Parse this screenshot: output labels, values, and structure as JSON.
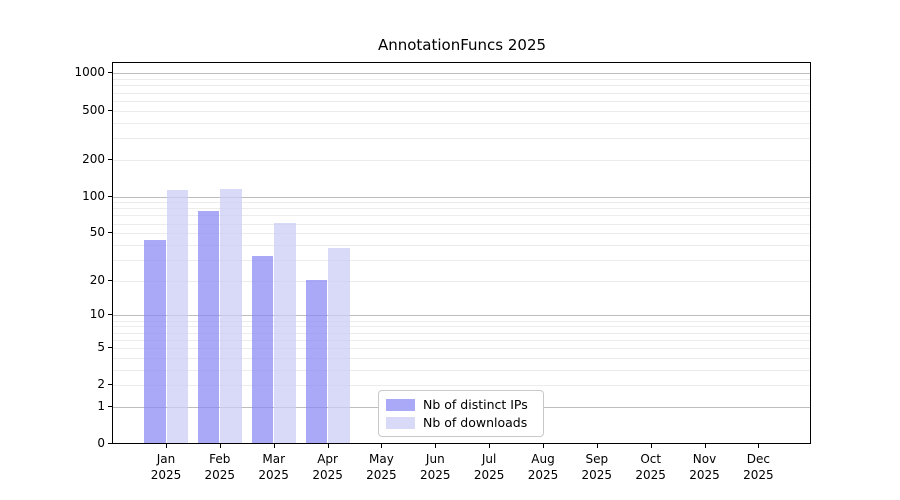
{
  "chart_data": {
    "type": "bar",
    "title": "AnnotationFuncs 2025",
    "year_label": "2025",
    "categories": [
      "Jan",
      "Feb",
      "Mar",
      "Apr",
      "May",
      "Jun",
      "Jul",
      "Aug",
      "Sep",
      "Oct",
      "Nov",
      "Dec"
    ],
    "series": [
      {
        "name": "Nb of distinct IPs",
        "color": "rgba(136,136,245,0.72)",
        "values": [
          43,
          75,
          32,
          20,
          0,
          0,
          0,
          0,
          0,
          0,
          0,
          0
        ]
      },
      {
        "name": "Nb of downloads",
        "color": "rgba(204,204,245,0.75)",
        "values": [
          110,
          112,
          60,
          37,
          0,
          0,
          0,
          0,
          0,
          0,
          0,
          0
        ]
      }
    ],
    "xlabel": "",
    "ylabel": "",
    "yscale": "log1p",
    "ylim": [
      0,
      1200
    ],
    "ytick_values": [
      0,
      1,
      2,
      5,
      10,
      20,
      50,
      100,
      200,
      500,
      1000
    ],
    "grid_major_values": [
      1,
      10,
      100,
      1000
    ],
    "grid_minor_values": [
      2,
      3,
      4,
      5,
      6,
      7,
      8,
      9,
      20,
      30,
      40,
      50,
      60,
      70,
      80,
      90,
      200,
      300,
      400,
      500,
      600,
      700,
      800,
      900
    ],
    "grid": "on",
    "legend_position": "lower center (inside plot)",
    "colors": {
      "grid_major": "#bdbdbd",
      "grid_minor": "#ececec",
      "axis": "#000000",
      "text": "#000000",
      "background": "#ffffff"
    }
  }
}
